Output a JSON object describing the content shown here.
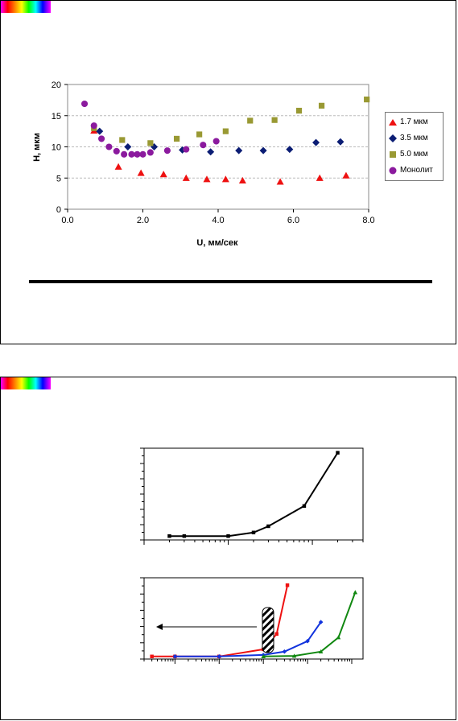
{
  "chart_data": [
    {
      "type": "scatter",
      "xlabel": "U, мм/сек",
      "ylabel": "H, мкм",
      "xlim": [
        0,
        8
      ],
      "ylim": [
        0,
        20
      ],
      "xticks": [
        "0.0",
        "2.0",
        "4.0",
        "6.0",
        "8.0"
      ],
      "yticks": [
        "0",
        "5",
        "10",
        "15",
        "20"
      ],
      "grid": "horizontal dashed",
      "legend_position": "right",
      "series": [
        {
          "name": "1.7 мкм",
          "color": "#ee1111",
          "marker": "triangle",
          "points": [
            [
              0.7,
              12.6
            ],
            [
              1.35,
              6.8
            ],
            [
              1.95,
              5.8
            ],
            [
              2.55,
              5.6
            ],
            [
              3.15,
              5.0
            ],
            [
              3.7,
              4.8
            ],
            [
              4.2,
              4.8
            ],
            [
              4.65,
              4.6
            ],
            [
              5.65,
              4.4
            ],
            [
              6.7,
              5.0
            ],
            [
              7.4,
              5.4
            ]
          ]
        },
        {
          "name": "3.5 мкм",
          "color": "#0b1d74",
          "marker": "diamond",
          "points": [
            [
              0.85,
              12.5
            ],
            [
              1.6,
              10.0
            ],
            [
              2.3,
              10.0
            ],
            [
              3.05,
              9.5
            ],
            [
              3.8,
              9.2
            ],
            [
              4.55,
              9.4
            ],
            [
              5.2,
              9.4
            ],
            [
              5.9,
              9.6
            ],
            [
              6.6,
              10.7
            ],
            [
              7.25,
              10.8
            ]
          ]
        },
        {
          "name": "5.0 мкм",
          "color": "#999933",
          "marker": "square",
          "points": [
            [
              0.7,
              13.0
            ],
            [
              1.45,
              11.1
            ],
            [
              2.2,
              10.6
            ],
            [
              2.9,
              11.3
            ],
            [
              3.5,
              12.0
            ],
            [
              4.2,
              12.5
            ],
            [
              4.85,
              14.2
            ],
            [
              5.5,
              14.3
            ],
            [
              6.15,
              15.8
            ],
            [
              6.75,
              16.6
            ],
            [
              7.95,
              17.6
            ]
          ]
        },
        {
          "name": "Монолит",
          "color": "#8b1a9e",
          "marker": "circle",
          "points": [
            [
              0.45,
              16.9
            ],
            [
              0.7,
              13.4
            ],
            [
              0.9,
              11.3
            ],
            [
              1.1,
              10.0
            ],
            [
              1.3,
              9.3
            ],
            [
              1.5,
              8.8
            ],
            [
              1.7,
              8.8
            ],
            [
              1.85,
              8.8
            ],
            [
              2.0,
              8.8
            ],
            [
              2.2,
              9.1
            ],
            [
              2.65,
              9.4
            ],
            [
              3.15,
              9.6
            ],
            [
              3.6,
              10.3
            ],
            [
              3.95,
              10.9
            ]
          ]
        }
      ]
    },
    {
      "type": "line",
      "xscale": "log",
      "yscale": "log",
      "series": [
        {
          "name": "",
          "color": "#000000",
          "marker": "square",
          "points": [
            [
              0.02,
              1.1
            ],
            [
              0.03,
              1.1
            ],
            [
              0.1,
              1.1
            ],
            [
              0.2,
              1.2
            ],
            [
              0.3,
              1.4
            ],
            [
              0.8,
              2.3
            ],
            [
              2.0,
              8.5
            ]
          ]
        }
      ]
    },
    {
      "type": "line",
      "xscale": "log",
      "yscale": "log",
      "series": [
        {
          "name": "",
          "color": "#ee1111",
          "marker": "square",
          "points": [
            [
              0.0003,
              1.05
            ],
            [
              0.001,
              1.05
            ],
            [
              0.01,
              1.05
            ],
            [
              0.1,
              1.2
            ],
            [
              0.2,
              1.6
            ],
            [
              0.35,
              4.0
            ]
          ]
        },
        {
          "name": "",
          "color": "#1133dd",
          "marker": "diamond",
          "points": [
            [
              0.001,
              1.05
            ],
            [
              0.01,
              1.05
            ],
            [
              0.1,
              1.08
            ],
            [
              0.3,
              1.15
            ],
            [
              1.0,
              1.4
            ],
            [
              2.0,
              2.0
            ]
          ]
        },
        {
          "name": "",
          "color": "#118811",
          "marker": "triangle",
          "points": [
            [
              0.1,
              1.05
            ],
            [
              0.5,
              1.06
            ],
            [
              2.0,
              1.15
            ],
            [
              5.0,
              1.5
            ],
            [
              12.0,
              3.5
            ]
          ]
        }
      ]
    }
  ]
}
